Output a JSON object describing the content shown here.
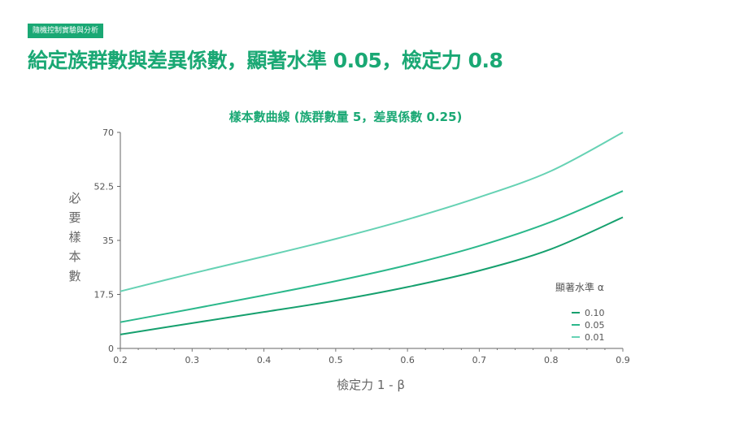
{
  "header": {
    "tag": "隨機控制實驗與分析",
    "title": "給定族群數與差異係數，顯著水準 0.05，檢定力 0.8"
  },
  "chart_data": {
    "type": "line",
    "title": "樣本數曲線 (族群數量 5，差異係數 0.25)",
    "xlabel": "檢定力 1 - β",
    "ylabel": "必要樣本數",
    "xlim": [
      0.2,
      0.9
    ],
    "ylim": [
      0,
      70
    ],
    "xticks": [
      "0.2",
      "0.3",
      "0.4",
      "0.5",
      "0.6",
      "0.7",
      "0.8",
      "0.9"
    ],
    "yticks": [
      "0",
      "17.5",
      "35",
      "52.5",
      "70"
    ],
    "grid": false,
    "legend": {
      "title": "顯著水準 α",
      "placement": "right"
    },
    "x": [
      0.2,
      0.3,
      0.4,
      0.5,
      0.6,
      0.7,
      0.8,
      0.9
    ],
    "series": [
      {
        "name": "0.10",
        "color": "#16a06e",
        "values": [
          4.5,
          8.2,
          11.8,
          15.5,
          19.9,
          25.2,
          32.2,
          42.5
        ]
      },
      {
        "name": "0.05",
        "color": "#2bb88b",
        "values": [
          8.5,
          12.8,
          17.2,
          21.8,
          27.0,
          33.2,
          41.0,
          51.0
        ]
      },
      {
        "name": "0.01",
        "color": "#66d2b4",
        "values": [
          18.5,
          24.3,
          29.8,
          35.5,
          41.8,
          49.0,
          57.5,
          70.0
        ]
      }
    ]
  }
}
